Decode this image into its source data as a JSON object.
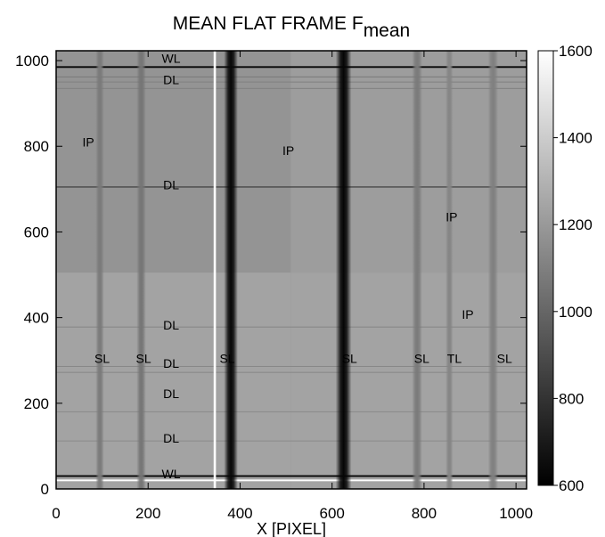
{
  "chart_data": {
    "type": "heatmap",
    "title": "MEAN FLAT FRAME  F",
    "title_subscript": "mean",
    "xlabel": "X [PIXEL]",
    "ylabel": "",
    "xlim": [
      0,
      1023
    ],
    "ylim": [
      0,
      1023
    ],
    "x_ticks": [
      0,
      200,
      400,
      600,
      800,
      1000
    ],
    "y_ticks": [
      0,
      200,
      400,
      600,
      800,
      1000
    ],
    "colorbar": {
      "range": [
        600,
        1600
      ],
      "colormap": "gray",
      "ticks": [
        600,
        800,
        1000,
        1200,
        1400,
        1600
      ]
    },
    "base_level": 1170,
    "quadrant_levels": {
      "upper_left": 1180,
      "upper_right": 1215,
      "lower_left": 1240,
      "lower_right": 1240
    },
    "quadrant_split": {
      "x": 510,
      "y": 505
    },
    "vertical_features": [
      {
        "x": 95,
        "width": 18,
        "value": 1080
      },
      {
        "x": 185,
        "width": 20,
        "value": 1060
      },
      {
        "x": 345,
        "width": 5,
        "value": 1600
      },
      {
        "x": 380,
        "width": 30,
        "value": 630
      },
      {
        "x": 625,
        "width": 34,
        "value": 620
      },
      {
        "x": 785,
        "width": 22,
        "value": 1080
      },
      {
        "x": 855,
        "width": 16,
        "value": 1120
      },
      {
        "x": 950,
        "width": 22,
        "value": 1100
      }
    ],
    "horizontal_features": [
      {
        "y": 985,
        "width": 4,
        "value": 640
      },
      {
        "y": 962,
        "width": 2,
        "value": 1070
      },
      {
        "y": 950,
        "width": 2,
        "value": 1100
      },
      {
        "y": 935,
        "width": 2,
        "value": 1100
      },
      {
        "y": 705,
        "width": 3,
        "value": 900
      },
      {
        "y": 378,
        "width": 2,
        "value": 1120
      },
      {
        "y": 286,
        "width": 2,
        "value": 1130
      },
      {
        "y": 272,
        "width": 2,
        "value": 1130
      },
      {
        "y": 180,
        "width": 2,
        "value": 1140
      },
      {
        "y": 112,
        "width": 2,
        "value": 1140
      },
      {
        "y": 30,
        "width": 4,
        "value": 630
      },
      {
        "y": 20,
        "width": 4,
        "value": 1600
      }
    ],
    "annotations": [
      {
        "text": "WL",
        "x": 250,
        "y": 1005
      },
      {
        "text": "DL",
        "x": 250,
        "y": 955
      },
      {
        "text": "IP",
        "x": 70,
        "y": 810
      },
      {
        "text": "IP",
        "x": 505,
        "y": 790
      },
      {
        "text": "DL",
        "x": 250,
        "y": 710
      },
      {
        "text": "IP",
        "x": 860,
        "y": 635
      },
      {
        "text": "IP",
        "x": 895,
        "y": 408
      },
      {
        "text": "DL",
        "x": 250,
        "y": 383
      },
      {
        "text": "SL",
        "x": 100,
        "y": 305
      },
      {
        "text": "SL",
        "x": 190,
        "y": 305
      },
      {
        "text": "DL",
        "x": 250,
        "y": 293
      },
      {
        "text": "SL",
        "x": 372,
        "y": 305
      },
      {
        "text": "SL",
        "x": 638,
        "y": 305
      },
      {
        "text": "SL",
        "x": 795,
        "y": 305
      },
      {
        "text": "TL",
        "x": 866,
        "y": 305
      },
      {
        "text": "SL",
        "x": 975,
        "y": 305
      },
      {
        "text": "DL",
        "x": 250,
        "y": 222
      },
      {
        "text": "DL",
        "x": 250,
        "y": 118
      },
      {
        "text": "WL",
        "x": 250,
        "y": 35
      }
    ]
  }
}
